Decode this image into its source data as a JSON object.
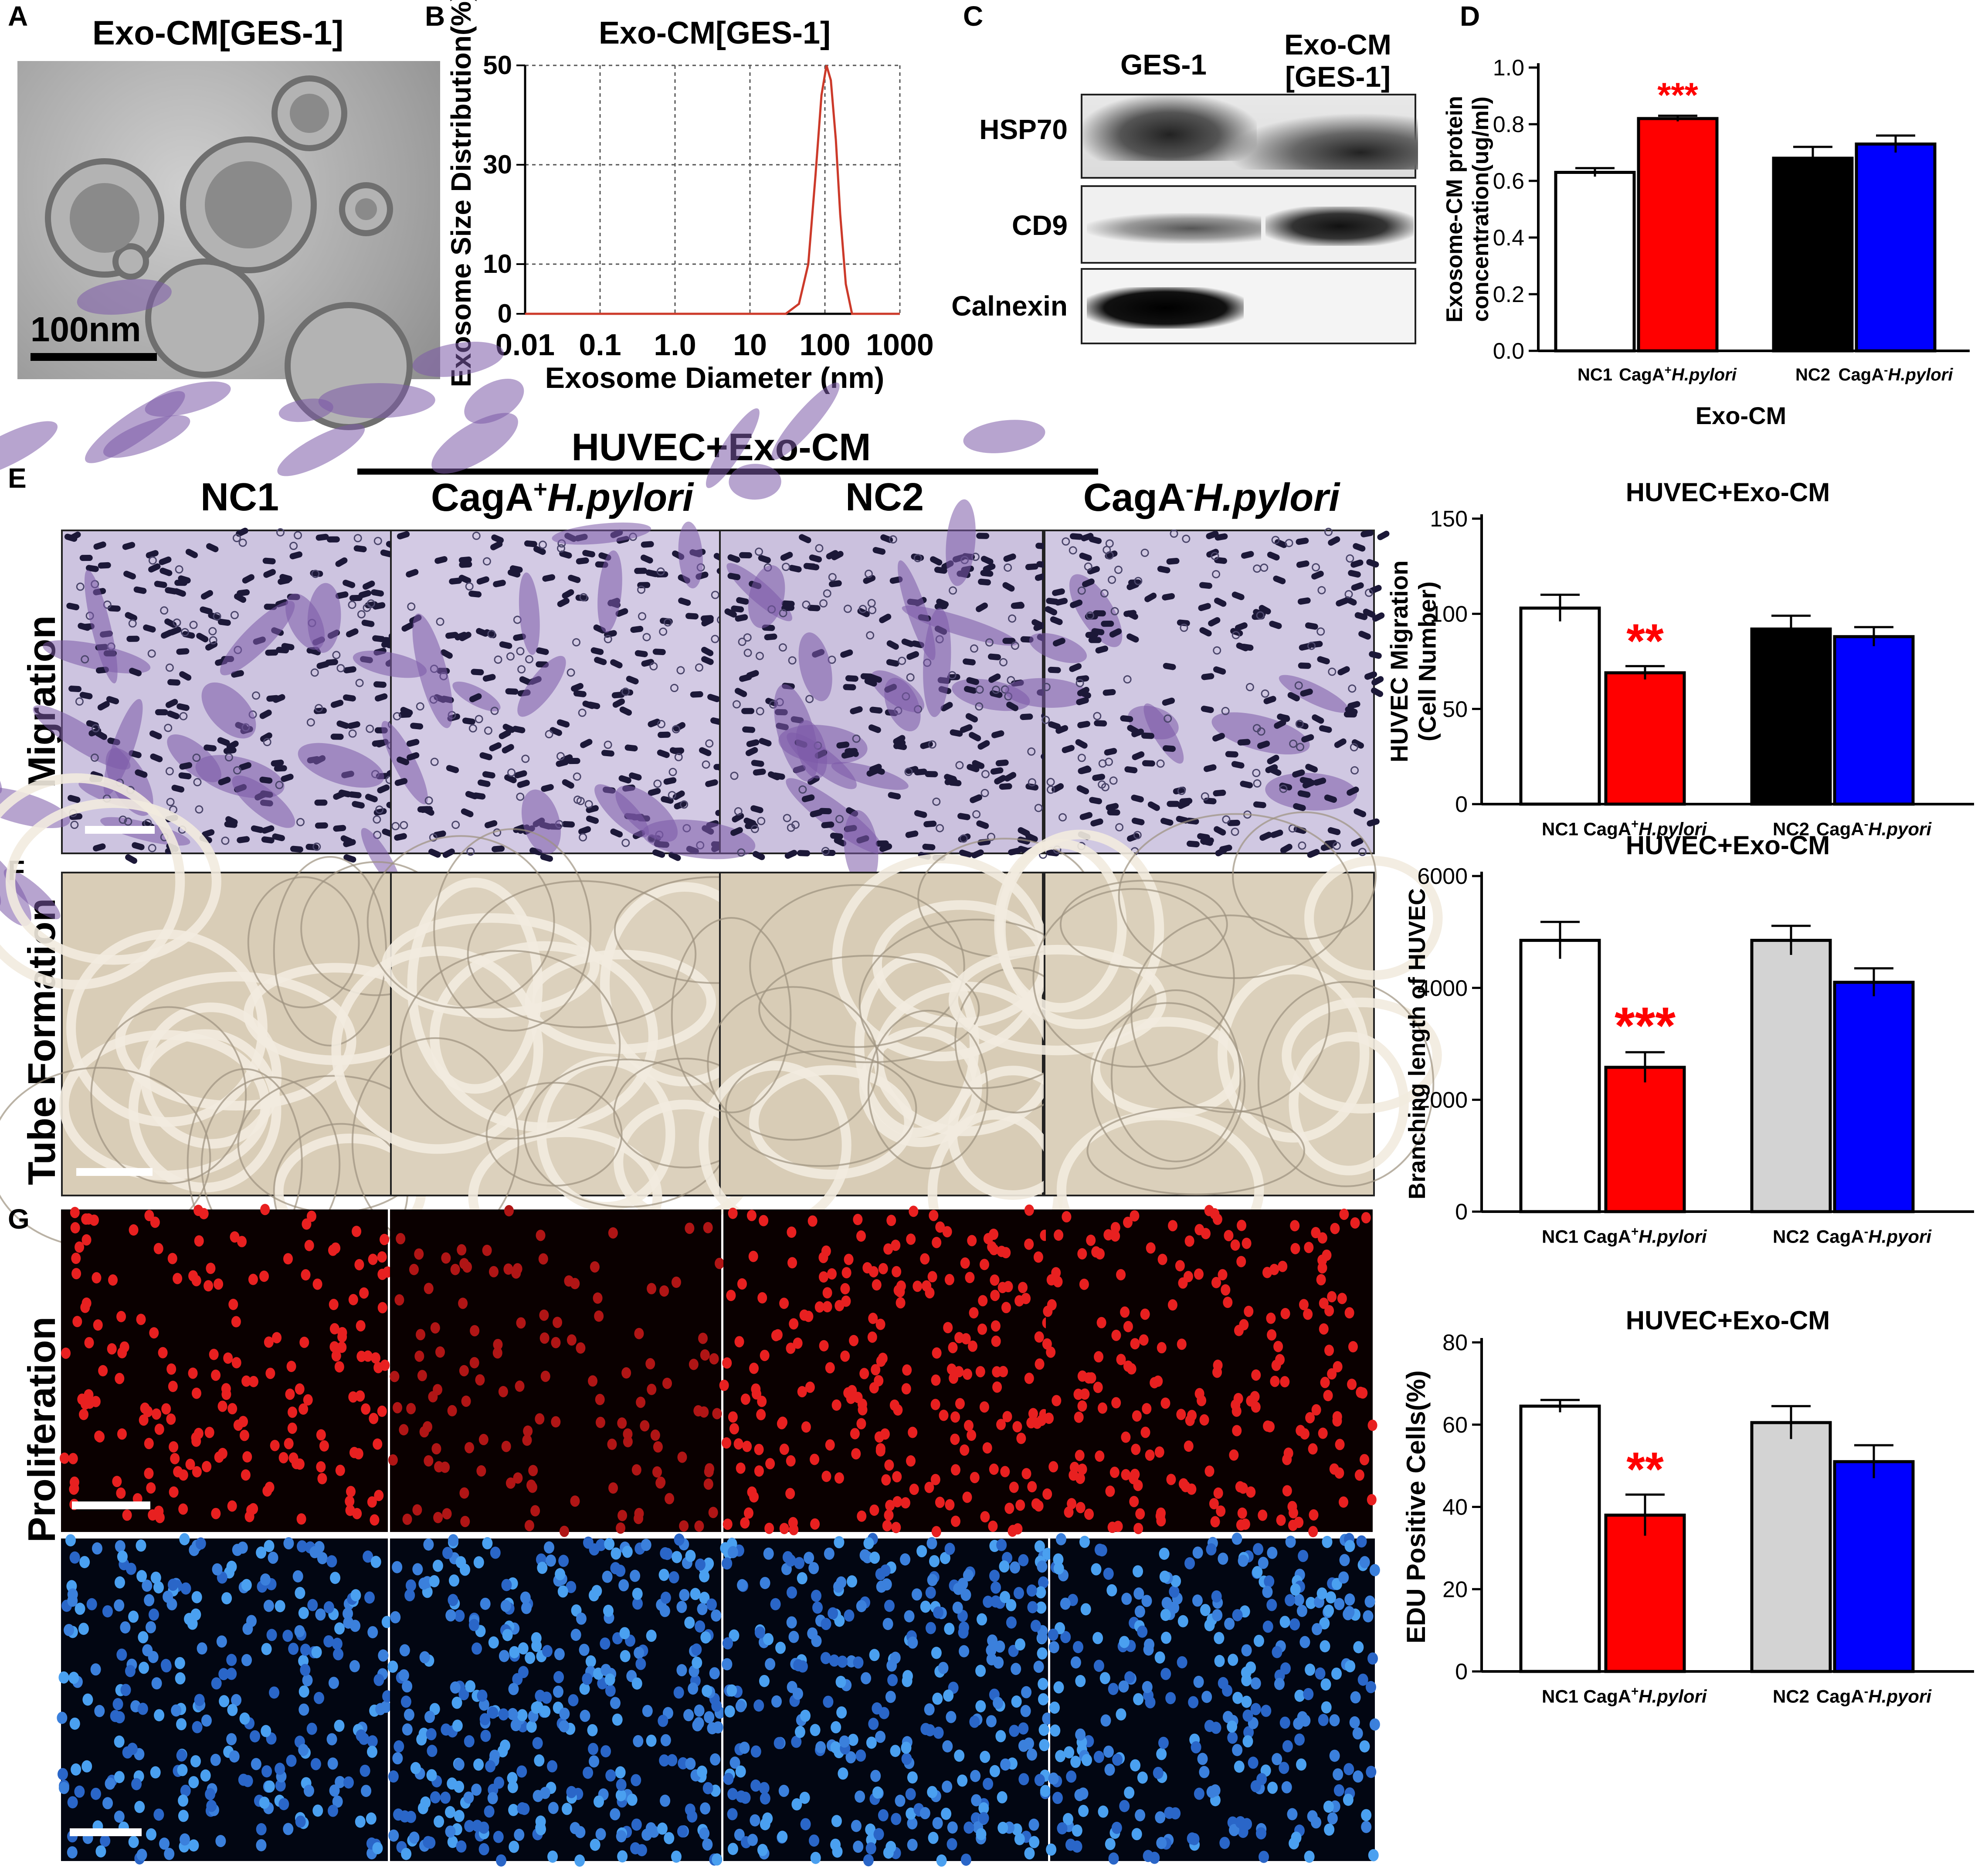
{
  "panelA": {
    "letter": "A",
    "title": "Exo-CM[GES-1]",
    "scale": "100nm"
  },
  "panelB": {
    "letter": "B"
  },
  "panelC": {
    "letter": "C",
    "columns": [
      "GES-1",
      "Exo-CM\n[GES-1]"
    ],
    "rows": [
      "HSP70",
      "CD9",
      "Calnexin"
    ]
  },
  "panelD": {
    "letter": "D"
  },
  "panelE": {
    "letter": "E"
  },
  "panelF": {
    "letter": "F"
  },
  "panelG": {
    "letter": "G"
  },
  "header": {
    "group": "HUVEC+Exo-CM",
    "columns": [
      "NC1",
      "CagA+H.pylori",
      "NC2",
      "CagA-H.pylori"
    ]
  },
  "rows": {
    "migration": "Migration",
    "tube": "Tube Formation",
    "proliferation": "Proliferation"
  },
  "chart_data": [
    {
      "id": "B",
      "type": "line",
      "title": "Exo-CM[GES-1]",
      "xlabel": "Exosome Diameter (nm)",
      "ylabel": "Exosome Size Distribution(%)",
      "xscale": "log",
      "xticks": [
        "0.01",
        "0.1",
        "1.0",
        "10",
        "100",
        "1000"
      ],
      "yticks": [
        "0",
        "10",
        "30",
        "50"
      ],
      "xlim": [
        0.01,
        1000
      ],
      "ylim": [
        0,
        50
      ],
      "grid": true,
      "series": [
        {
          "color": "#cc3a2a",
          "x": [
            0.01,
            30,
            45,
            60,
            75,
            90,
            105,
            120,
            140,
            160,
            190,
            230,
            1000
          ],
          "y": [
            0,
            0,
            2,
            10,
            28,
            44,
            50,
            47,
            35,
            20,
            6,
            0,
            0
          ]
        }
      ]
    },
    {
      "id": "D",
      "type": "bar",
      "title": "",
      "xlabel": "Exo-CM",
      "ylabel": "Exosome-CM protein concentration(ug/ml)",
      "categories": [
        "NC1",
        "CagA+H.pylori",
        "NC2",
        "CagA-H.pylori"
      ],
      "values": [
        0.63,
        0.82,
        0.68,
        0.73
      ],
      "errors": [
        0.015,
        0.01,
        0.04,
        0.03
      ],
      "colors": [
        "#ffffff",
        "#ff0000",
        "#000000",
        "#0000ff"
      ],
      "yticks": [
        "0.0",
        "0.2",
        "0.4",
        "0.6",
        "0.8",
        "1.0"
      ],
      "ylim": [
        0,
        1.0
      ],
      "annotations": [
        {
          "bar": 1,
          "text": "***"
        }
      ]
    },
    {
      "id": "E",
      "type": "bar",
      "title": "HUVEC+Exo-CM",
      "ylabel": "HUVEC Migration (Cell Number)",
      "categories": [
        "NC1",
        "CagA+H.pylori",
        "NC2",
        "CagA-H.pyori"
      ],
      "values": [
        103,
        69,
        92,
        88
      ],
      "errors": [
        7,
        3.5,
        7,
        5
      ],
      "colors": [
        "#ffffff",
        "#ff0000",
        "#000000",
        "#0000ff"
      ],
      "yticks": [
        "0",
        "50",
        "100",
        "150"
      ],
      "ylim": [
        0,
        150
      ],
      "annotations": [
        {
          "bar": 1,
          "text": "**"
        }
      ]
    },
    {
      "id": "F",
      "type": "bar",
      "title": "HUVEC+Exo-CM",
      "ylabel": "Branching length of HUVEC",
      "categories": [
        "NC1",
        "CagA+H.pylori",
        "NC2",
        "CagA-H.pyori"
      ],
      "values": [
        4850,
        2580,
        4850,
        4100
      ],
      "errors": [
        330,
        270,
        260,
        250
      ],
      "colors": [
        "#ffffff",
        "#ff0000",
        "#d3d3d3",
        "#0000ff"
      ],
      "yticks": [
        "0",
        "2000",
        "4000",
        "6000"
      ],
      "ylim": [
        0,
        6000
      ],
      "annotations": [
        {
          "bar": 1,
          "text": "***"
        }
      ]
    },
    {
      "id": "G",
      "type": "bar",
      "title": "HUVEC+Exo-CM",
      "ylabel": "EDU Positive Cells(%)",
      "categories": [
        "NC1",
        "CagA+H.pylori",
        "NC2",
        "CagA-H.pyori"
      ],
      "values": [
        64.5,
        38,
        60.5,
        51
      ],
      "errors": [
        1.5,
        5,
        4,
        4
      ],
      "colors": [
        "#ffffff",
        "#ff0000",
        "#d3d3d3",
        "#0000ff"
      ],
      "yticks": [
        "0",
        "20",
        "40",
        "60",
        "80"
      ],
      "ylim": [
        0,
        80
      ],
      "annotations": [
        {
          "bar": 1,
          "text": "**"
        }
      ]
    }
  ]
}
